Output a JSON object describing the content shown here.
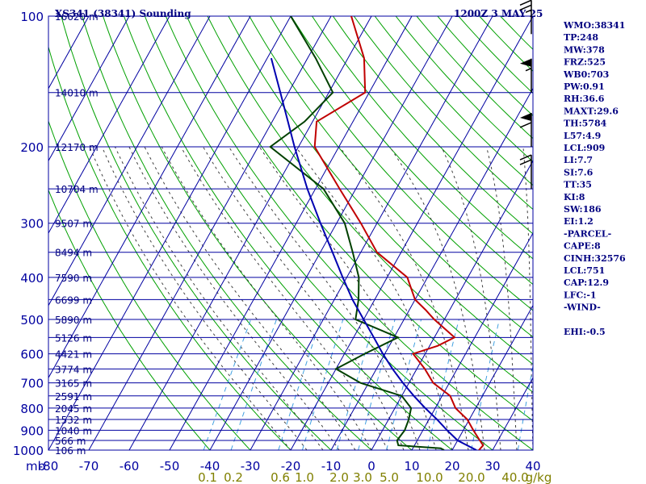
{
  "chart_data": {
    "type": "line",
    "title": "XS341 (38341) Sounding",
    "valid_time": "1200Z  3 MAY 25",
    "y_axis": {
      "scale": "log-pressure",
      "range": [
        1000,
        100
      ],
      "ticks": [
        100,
        200,
        300,
        400,
        500,
        600,
        700,
        800,
        900,
        1000
      ],
      "unit_label": "mb"
    },
    "x_axis": {
      "range": [
        -80,
        40
      ],
      "ticks": [
        -80,
        -70,
        -60,
        -50,
        -40,
        -30,
        -20,
        -10,
        0,
        10,
        20,
        30,
        40
      ],
      "tick_labels": [
        "-80",
        "-70",
        "-60",
        "-50",
        "-40",
        "-30",
        "-20",
        "-10",
        "0",
        "10",
        "20",
        "30",
        "40"
      ]
    },
    "mixing_ratio_labels": [
      "0.1",
      "0.2",
      "0.6",
      "1.0",
      "2.0",
      "3.0",
      "5.0",
      "10.0",
      "20.0",
      "40.0",
      "g/kg"
    ],
    "height_labels": [
      {
        "p": 100,
        "text": "16620 m"
      },
      {
        "p": 150,
        "text": "14010 m"
      },
      {
        "p": 200,
        "text": "12170 m"
      },
      {
        "p": 250,
        "text": "10704 m"
      },
      {
        "p": 300,
        "text": "9507 m"
      },
      {
        "p": 350,
        "text": "8494 m"
      },
      {
        "p": 400,
        "text": "7590 m"
      },
      {
        "p": 450,
        "text": "6699 m"
      },
      {
        "p": 500,
        "text": "5890 m"
      },
      {
        "p": 550,
        "text": "5126 m"
      },
      {
        "p": 600,
        "text": "4421 m"
      },
      {
        "p": 650,
        "text": "3774 m"
      },
      {
        "p": 700,
        "text": "3165 m"
      },
      {
        "p": 750,
        "text": "2591 m"
      },
      {
        "p": 800,
        "text": "2045 m"
      },
      {
        "p": 850,
        "text": "1532 m"
      },
      {
        "p": 900,
        "text": "1040 m"
      },
      {
        "p": 950,
        "text": "566 m"
      },
      {
        "p": 1000,
        "text": "106 m"
      }
    ],
    "series": [
      {
        "name": "Temperature",
        "color": "#c00000",
        "points": [
          [
            1000,
            26.6
          ],
          [
            975,
            27
          ],
          [
            950,
            25.5
          ],
          [
            900,
            22.5
          ],
          [
            850,
            19.5
          ],
          [
            800,
            15
          ],
          [
            750,
            12
          ],
          [
            700,
            6
          ],
          [
            650,
            2
          ],
          [
            600,
            -3
          ],
          [
            575,
            2
          ],
          [
            550,
            5
          ],
          [
            500,
            -2.5
          ],
          [
            475,
            -6
          ],
          [
            450,
            -10
          ],
          [
            400,
            -15
          ],
          [
            350,
            -26
          ],
          [
            300,
            -34
          ],
          [
            250,
            -44
          ],
          [
            200,
            -56
          ],
          [
            175,
            -59
          ],
          [
            150,
            -51
          ],
          [
            125,
            -56
          ],
          [
            100,
            -65
          ]
        ]
      },
      {
        "name": "Dewpoint",
        "color": "#004000",
        "points": [
          [
            1000,
            18
          ],
          [
            990,
            16.9
          ],
          [
            975,
            6
          ],
          [
            950,
            5
          ],
          [
            900,
            5.5
          ],
          [
            850,
            5
          ],
          [
            800,
            4
          ],
          [
            750,
            0
          ],
          [
            700,
            -12
          ],
          [
            650,
            -20
          ],
          [
            600,
            -15
          ],
          [
            550,
            -9
          ],
          [
            500,
            -22
          ],
          [
            450,
            -24
          ],
          [
            400,
            -27
          ],
          [
            350,
            -32
          ],
          [
            300,
            -38
          ],
          [
            250,
            -48
          ],
          [
            200,
            -67
          ],
          [
            175,
            -62
          ],
          [
            150,
            -59
          ],
          [
            125,
            -68
          ],
          [
            100,
            -80
          ]
        ]
      },
      {
        "name": "Parcel",
        "color": "#0000b0",
        "points": [
          [
            1000,
            26
          ],
          [
            950,
            20
          ],
          [
            900,
            16
          ],
          [
            850,
            12
          ],
          [
            800,
            7.5
          ],
          [
            750,
            3
          ],
          [
            700,
            -1.5
          ],
          [
            650,
            -6
          ],
          [
            600,
            -10.5
          ],
          [
            550,
            -15
          ],
          [
            500,
            -20
          ],
          [
            450,
            -25.5
          ],
          [
            400,
            -31
          ],
          [
            350,
            -37
          ],
          [
            300,
            -44
          ],
          [
            250,
            -52
          ],
          [
            200,
            -61
          ],
          [
            150,
            -72
          ],
          [
            125,
            -79
          ]
        ]
      }
    ],
    "wind_barbs": [
      {
        "p": 110,
        "dir": 280,
        "speed": 25
      },
      {
        "p": 150,
        "dir": 280,
        "speed": 55
      },
      {
        "p": 200,
        "dir": 280,
        "speed": 60
      },
      {
        "p": 250,
        "dir": 280,
        "speed": 20
      }
    ],
    "indices": [
      "WMO:38341",
      "TP:248",
      "MW:378",
      "FRZ:525",
      "WB0:703",
      "PW:0.91",
      "RH:36.6",
      "MAXT:29.6",
      "TH:5784",
      "L57:4.9",
      "LCL:909",
      "LI:7.7",
      "SI:7.6",
      "TT:35",
      "KI:8",
      "SW:186",
      "EI:1.2",
      "-PARCEL-",
      "CAPE:8",
      "CINH:32576",
      "LCL:751",
      "CAP:12.9",
      "LFC:-1",
      "-WIND-",
      "",
      "EHI:-0.5"
    ],
    "colors": {
      "isobar": "#0000a0",
      "isotherm": "#0000a0",
      "dry_adiabat": "#00a000",
      "moist_adiabat": "#404040",
      "mixing_ratio": "#40a0e0",
      "text": "#000080"
    }
  }
}
